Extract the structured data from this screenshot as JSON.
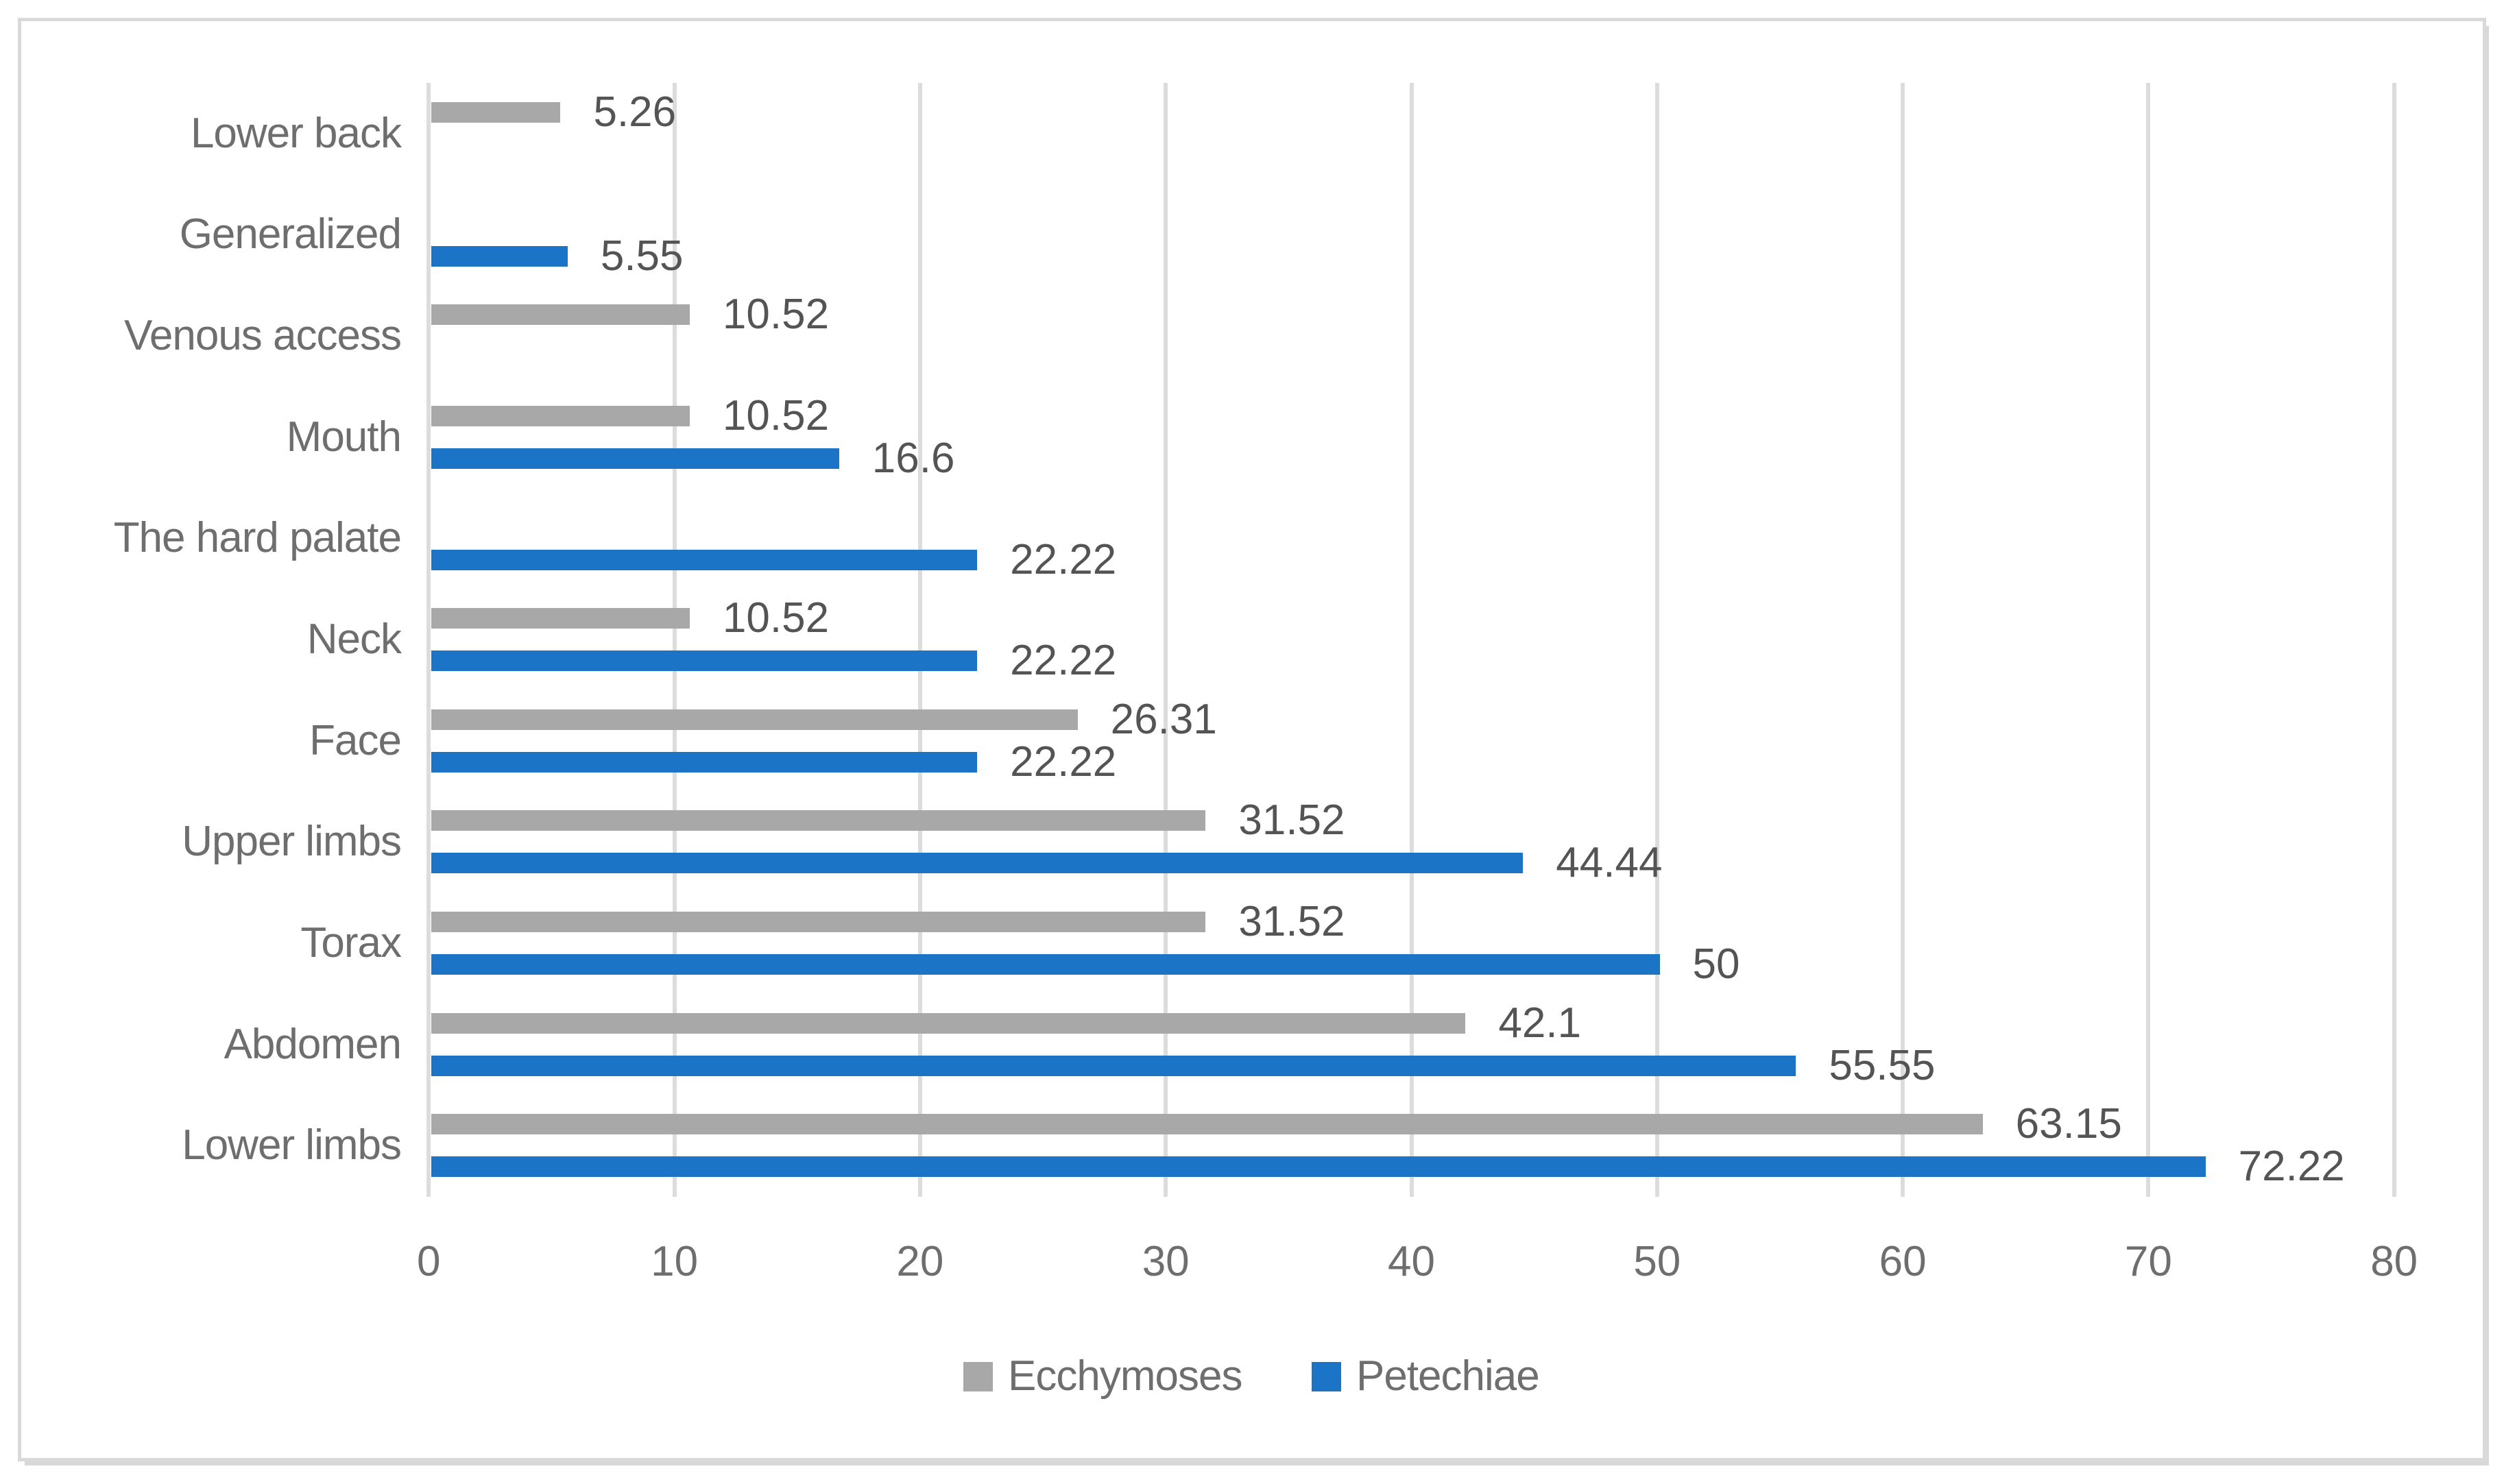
{
  "chart_data": {
    "type": "bar",
    "orientation": "horizontal",
    "title": "",
    "categories": [
      "Lower back",
      "Generalized",
      "Venous access",
      "Mouth",
      "The hard palate",
      "Neck",
      "Face",
      "Upper limbs",
      "Torax",
      "Abdomen",
      "Lower limbs"
    ],
    "series": [
      {
        "name": "Ecchymoses",
        "color": "#A8A8A8",
        "values": [
          5.26,
          null,
          10.52,
          10.52,
          null,
          10.52,
          26.31,
          31.52,
          31.52,
          42.1,
          63.15
        ],
        "labels": [
          "5.26",
          "",
          "10.52",
          "10.52",
          "",
          "10.52",
          "26.31",
          "31.52",
          "31.52",
          "42.1",
          "63.15"
        ]
      },
      {
        "name": "Petechiae",
        "color": "#1B74C5",
        "values": [
          null,
          5.55,
          null,
          16.6,
          22.22,
          22.22,
          22.22,
          44.44,
          50,
          55.55,
          72.22
        ],
        "labels": [
          "",
          "5.55",
          "",
          "16.6",
          "22.22",
          "22.22",
          "22.22",
          "44.44",
          "50",
          "55.55",
          "72.22"
        ]
      }
    ],
    "x_ticks": [
      "0",
      "10",
      "20",
      "30",
      "40",
      "50",
      "60",
      "70",
      "80"
    ],
    "xlim": [
      0,
      80
    ],
    "grid": true,
    "legend_position": "bottom",
    "colors": {
      "gridline": "#DCDCDC",
      "panel_border": "#D9D9D9",
      "value_label": "#545454",
      "axis_label": "#6E6E6E"
    }
  }
}
